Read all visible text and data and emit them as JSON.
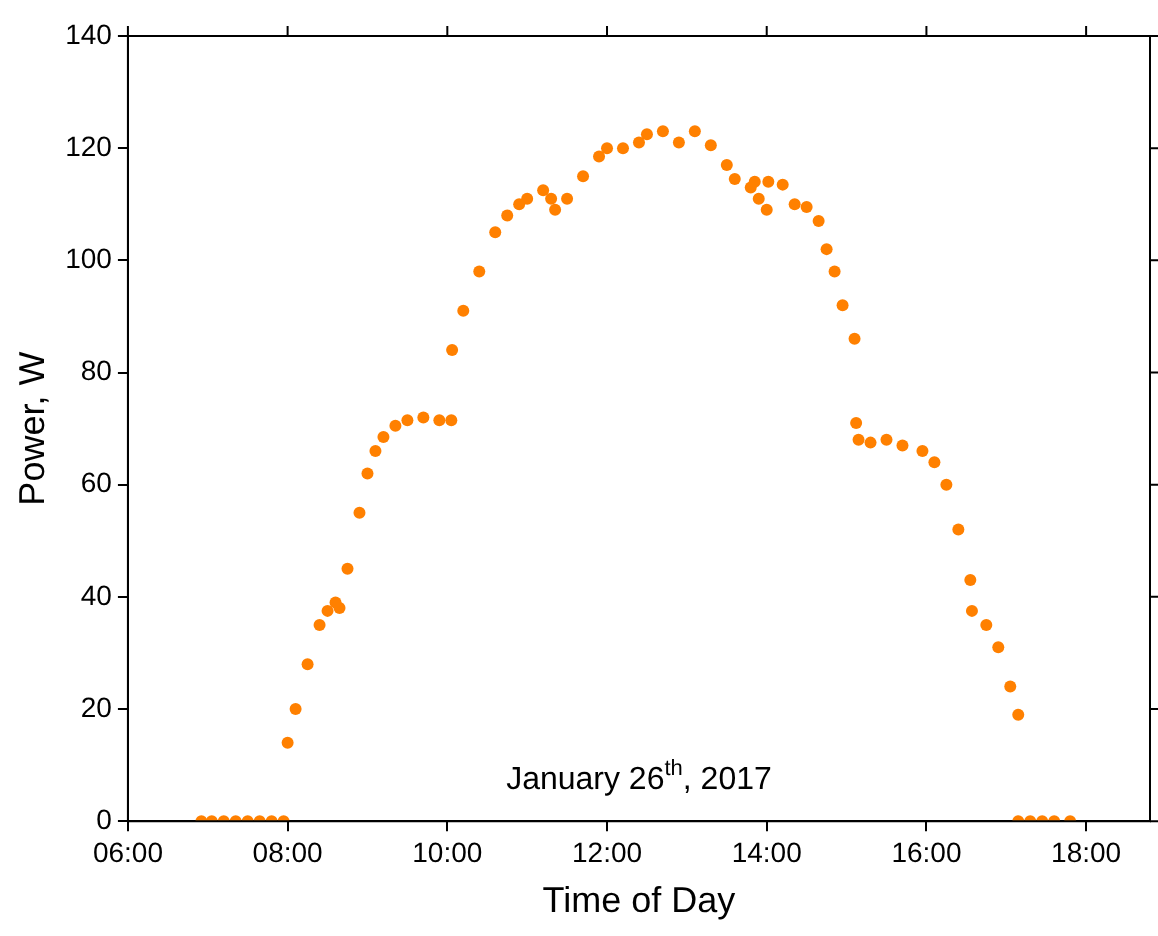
{
  "chart_data": {
    "type": "scatter",
    "xlabel": "Time of Day",
    "ylabel": "Power, W",
    "annotations": [
      "January 26$^{th}$, 2017"
    ],
    "xlim": [
      6,
      18.8
    ],
    "ylim": [
      0,
      140
    ],
    "xticks": [
      {
        "value": 6,
        "label": "06:00"
      },
      {
        "value": 8,
        "label": "08:00"
      },
      {
        "value": 10,
        "label": "10:00"
      },
      {
        "value": 12,
        "label": "12:00"
      },
      {
        "value": 14,
        "label": "14:00"
      },
      {
        "value": 16,
        "label": "16:00"
      },
      {
        "value": 18,
        "label": "18:00"
      }
    ],
    "yticks": [
      0,
      20,
      40,
      60,
      80,
      100,
      120,
      140
    ],
    "grid": false,
    "legend": false,
    "marker": "circle",
    "series": [
      {
        "color": "#ff8000",
        "x": [
          6.92,
          7.05,
          7.2,
          7.35,
          7.5,
          7.65,
          7.8,
          7.95,
          8.0,
          8.1,
          8.25,
          8.4,
          8.5,
          8.6,
          8.65,
          8.75,
          8.9,
          9.0,
          9.1,
          9.2,
          9.35,
          9.5,
          9.7,
          9.9,
          10.05,
          10.06,
          10.2,
          10.4,
          10.6,
          10.75,
          10.9,
          11.0,
          11.2,
          11.3,
          11.35,
          11.5,
          11.7,
          11.9,
          12.0,
          12.2,
          12.4,
          12.5,
          12.7,
          12.9,
          13.1,
          13.3,
          13.5,
          13.6,
          13.8,
          13.85,
          13.9,
          14.0,
          14.02,
          14.2,
          14.35,
          14.5,
          14.65,
          14.75,
          14.85,
          14.95,
          15.1,
          15.12,
          15.15,
          15.3,
          15.5,
          15.7,
          15.95,
          16.1,
          16.25,
          16.4,
          16.55,
          16.57,
          16.75,
          16.9,
          17.05,
          17.15,
          17.15,
          17.3,
          17.45,
          17.6,
          17.8
        ],
        "values": [
          0,
          0,
          0,
          0,
          0,
          0,
          0,
          0,
          14,
          20,
          28,
          35,
          37.5,
          39,
          38,
          45,
          55,
          62,
          66,
          68.5,
          70.5,
          71.5,
          72,
          71.5,
          71.5,
          84,
          91,
          98,
          105,
          108,
          110,
          111,
          112.5,
          111,
          109,
          111,
          115,
          118.5,
          120,
          120,
          121,
          122.5,
          123,
          121,
          123,
          120.5,
          117,
          114.5,
          113,
          114,
          111,
          109,
          114,
          113.5,
          110,
          109.5,
          107,
          102,
          98,
          92,
          86,
          71,
          68,
          67.5,
          68,
          67,
          66,
          64,
          60,
          52,
          43,
          37.5,
          35,
          31,
          24,
          19,
          0,
          0,
          0,
          0,
          0
        ]
      }
    ]
  }
}
